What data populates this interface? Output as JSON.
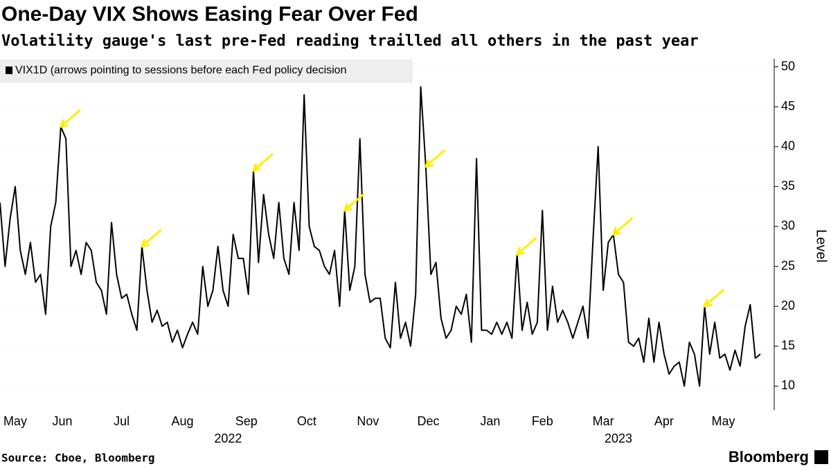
{
  "chart_data": {
    "type": "line",
    "title": "One-Day VIX Shows Easing Fear Over Fed",
    "subtitle": "Volatility gauge's last pre-Fed reading trailled all others in the past year",
    "ylabel": "Level",
    "source": "Source: Cboe, Bloomberg",
    "brand": "Bloomberg",
    "series": [
      {
        "name": "VIX1D (arrows pointing to sessions before each Fed policy decision",
        "color": "#000000",
        "values": [
          33,
          25,
          31,
          35,
          27,
          24,
          28,
          23,
          24,
          19,
          30,
          33,
          42.5,
          41,
          25,
          27,
          24,
          28,
          27,
          23,
          22,
          19,
          30.5,
          24,
          21,
          21.5,
          19,
          17,
          27.5,
          22,
          18,
          19.5,
          17.5,
          18,
          15.5,
          17,
          14.8,
          16.5,
          18,
          16.5,
          25,
          20,
          22,
          27.5,
          22,
          20,
          29,
          26,
          26,
          21.5,
          37,
          25.5,
          34,
          29,
          26,
          33,
          26,
          24,
          33,
          27,
          46.5,
          30,
          27.5,
          27,
          25,
          24,
          27,
          20,
          32,
          22,
          25,
          41,
          24,
          20.5,
          21,
          21,
          16,
          14.8,
          23,
          16,
          18,
          15,
          21.5,
          47.5,
          37.5,
          24,
          25.5,
          18.5,
          16,
          17,
          20,
          19,
          21.5,
          15.5,
          38.5,
          17,
          17,
          16.5,
          18,
          16.5,
          18,
          16,
          26.5,
          17,
          20.5,
          16.5,
          18,
          32,
          17,
          22.5,
          18,
          19.5,
          18,
          16,
          18,
          20,
          16,
          28.5,
          40,
          22,
          28,
          29,
          24,
          23,
          15.5,
          15,
          16,
          13,
          18.5,
          13,
          18,
          14,
          11.5,
          12.5,
          13,
          10,
          15.5,
          14,
          10,
          20,
          14,
          18,
          13.5,
          14,
          12,
          14.5,
          12.5,
          17.5,
          20.2,
          13.5,
          14
        ]
      }
    ],
    "arrows": [
      12,
      28,
      50,
      68,
      84,
      102,
      121,
      139
    ],
    "arrow_color": "#ffee00",
    "xlim": [
      0,
      150
    ],
    "xticks": [
      {
        "value": 3,
        "label": "May"
      },
      {
        "value": 12.3,
        "label": "Jun"
      },
      {
        "value": 24,
        "label": "Jul"
      },
      {
        "value": 36,
        "label": "Aug"
      },
      {
        "value": 48.6,
        "label": "Sep"
      },
      {
        "value": 60.5,
        "label": "Oct"
      },
      {
        "value": 72.6,
        "label": "Nov"
      },
      {
        "value": 84.5,
        "label": "Dec"
      },
      {
        "value": 96.7,
        "label": "Jan"
      },
      {
        "value": 107,
        "label": "Feb"
      },
      {
        "value": 119,
        "label": "Mar"
      },
      {
        "value": 131,
        "label": "Apr"
      },
      {
        "value": 142.7,
        "label": "May"
      }
    ],
    "year_labels": [
      {
        "value": 45,
        "label": "2022"
      },
      {
        "value": 122,
        "label": "2023"
      }
    ],
    "ylim": [
      7,
      51
    ],
    "yticks": [
      10,
      15,
      20,
      25,
      30,
      35,
      40,
      45,
      50
    ],
    "y_axis_side": "right"
  }
}
